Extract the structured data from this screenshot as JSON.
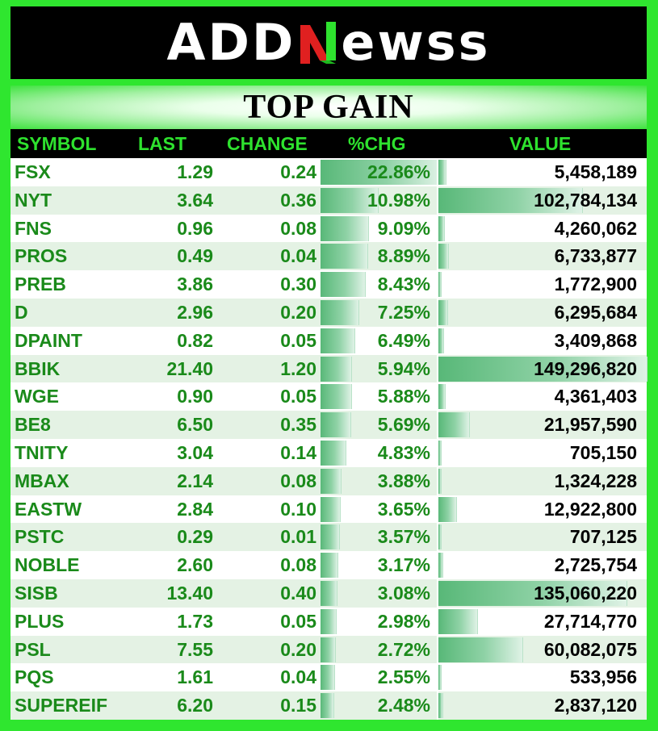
{
  "brand": {
    "left": "ADD",
    "middle": "N",
    "right": "ewss"
  },
  "title": "TOP GAIN",
  "colors": {
    "frame": "#2ee82e",
    "header_text": "#2ee22e",
    "green_text": "#1a8a1a",
    "bar": "#58b878"
  },
  "columns": [
    "SYMBOL",
    "LAST",
    "CHANGE",
    "%CHG",
    "VALUE"
  ],
  "rows": [
    {
      "symbol": "FSX",
      "last": "1.29",
      "change": "0.24",
      "pct": "22.86%",
      "value": "5,458,189",
      "pct_num": 22.86,
      "value_num": 5458189
    },
    {
      "symbol": "NYT",
      "last": "3.64",
      "change": "0.36",
      "pct": "10.98%",
      "value": "102,784,134",
      "pct_num": 10.98,
      "value_num": 102784134
    },
    {
      "symbol": "FNS",
      "last": "0.96",
      "change": "0.08",
      "pct": "9.09%",
      "value": "4,260,062",
      "pct_num": 9.09,
      "value_num": 4260062
    },
    {
      "symbol": "PROS",
      "last": "0.49",
      "change": "0.04",
      "pct": "8.89%",
      "value": "6,733,877",
      "pct_num": 8.89,
      "value_num": 6733877
    },
    {
      "symbol": "PREB",
      "last": "3.86",
      "change": "0.30",
      "pct": "8.43%",
      "value": "1,772,900",
      "pct_num": 8.43,
      "value_num": 1772900
    },
    {
      "symbol": "D",
      "last": "2.96",
      "change": "0.20",
      "pct": "7.25%",
      "value": "6,295,684",
      "pct_num": 7.25,
      "value_num": 6295684
    },
    {
      "symbol": "DPAINT",
      "last": "0.82",
      "change": "0.05",
      "pct": "6.49%",
      "value": "3,409,868",
      "pct_num": 6.49,
      "value_num": 3409868
    },
    {
      "symbol": "BBIK",
      "last": "21.40",
      "change": "1.20",
      "pct": "5.94%",
      "value": "149,296,820",
      "pct_num": 5.94,
      "value_num": 149296820
    },
    {
      "symbol": "WGE",
      "last": "0.90",
      "change": "0.05",
      "pct": "5.88%",
      "value": "4,361,403",
      "pct_num": 5.88,
      "value_num": 4361403
    },
    {
      "symbol": "BE8",
      "last": "6.50",
      "change": "0.35",
      "pct": "5.69%",
      "value": "21,957,590",
      "pct_num": 5.69,
      "value_num": 21957590
    },
    {
      "symbol": "TNITY",
      "last": "3.04",
      "change": "0.14",
      "pct": "4.83%",
      "value": "705,150",
      "pct_num": 4.83,
      "value_num": 705150
    },
    {
      "symbol": "MBAX",
      "last": "2.14",
      "change": "0.08",
      "pct": "3.88%",
      "value": "1,324,228",
      "pct_num": 3.88,
      "value_num": 1324228
    },
    {
      "symbol": "EASTW",
      "last": "2.84",
      "change": "0.10",
      "pct": "3.65%",
      "value": "12,922,800",
      "pct_num": 3.65,
      "value_num": 12922800
    },
    {
      "symbol": "PSTC",
      "last": "0.29",
      "change": "0.01",
      "pct": "3.57%",
      "value": "707,125",
      "pct_num": 3.57,
      "value_num": 707125
    },
    {
      "symbol": "NOBLE",
      "last": "2.60",
      "change": "0.08",
      "pct": "3.17%",
      "value": "2,725,754",
      "pct_num": 3.17,
      "value_num": 2725754
    },
    {
      "symbol": "SISB",
      "last": "13.40",
      "change": "0.40",
      "pct": "3.08%",
      "value": "135,060,220",
      "pct_num": 3.08,
      "value_num": 135060220
    },
    {
      "symbol": "PLUS",
      "last": "1.73",
      "change": "0.05",
      "pct": "2.98%",
      "value": "27,714,770",
      "pct_num": 2.98,
      "value_num": 27714770
    },
    {
      "symbol": "PSL",
      "last": "7.55",
      "change": "0.20",
      "pct": "2.72%",
      "value": "60,082,075",
      "pct_num": 2.72,
      "value_num": 60082075
    },
    {
      "symbol": "PQS",
      "last": "1.61",
      "change": "0.04",
      "pct": "2.55%",
      "value": "533,956",
      "pct_num": 2.55,
      "value_num": 533956
    },
    {
      "symbol": "SUPEREIF",
      "last": "6.20",
      "change": "0.15",
      "pct": "2.48%",
      "value": "2,837,120",
      "pct_num": 2.48,
      "value_num": 2837120
    }
  ]
}
